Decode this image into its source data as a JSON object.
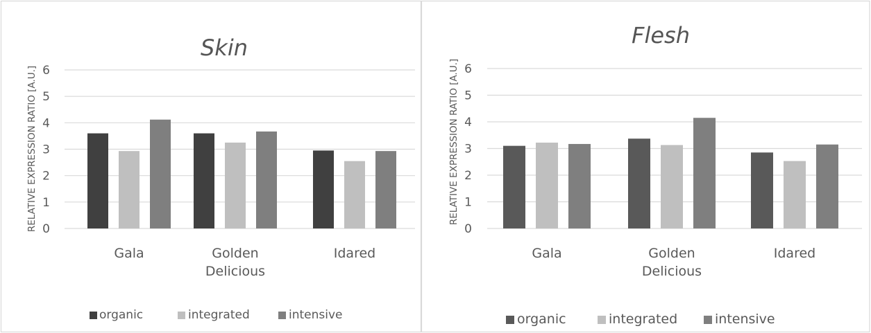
{
  "colors": {
    "organic_left": "#404040",
    "organic_right": "#595959",
    "integrated": "#bfbfbf",
    "intensive": "#7f7f7f",
    "gridline": "#d9d9d9",
    "border": "#d9d9d9"
  },
  "chart_data": [
    {
      "type": "bar",
      "title": "Skin",
      "ylabel": "RELATIVE EXPRESSION RATIO  [A.U.]",
      "xlabel": "",
      "ylim": [
        0,
        6
      ],
      "yticks": [
        "0",
        "1",
        "2",
        "3",
        "4",
        "5",
        "6"
      ],
      "grid": true,
      "legend_position": "bottom",
      "categories": [
        "Gala",
        "Golden Delicious",
        "Idared"
      ],
      "category_lines": [
        [
          "Gala"
        ],
        [
          "Golden",
          "Delicious"
        ],
        [
          "Idared"
        ]
      ],
      "series": [
        {
          "name": "organic",
          "values": [
            3.6,
            3.6,
            2.95
          ]
        },
        {
          "name": "integrated",
          "values": [
            2.93,
            3.25,
            2.55
          ]
        },
        {
          "name": "intensive",
          "values": [
            4.12,
            3.67,
            2.93
          ]
        }
      ]
    },
    {
      "type": "bar",
      "title": "Flesh",
      "ylabel": "RELATIVE EXPRESSION RATIO  [A.U.]",
      "xlabel": "",
      "ylim": [
        0,
        6
      ],
      "yticks": [
        "0",
        "1",
        "2",
        "3",
        "4",
        "5",
        "6"
      ],
      "grid": true,
      "legend_position": "bottom",
      "categories": [
        "Gala",
        "Golden Delicious",
        "Idared"
      ],
      "category_lines": [
        [
          "Gala"
        ],
        [
          "Golden",
          "Delicious"
        ],
        [
          "Idared"
        ]
      ],
      "series": [
        {
          "name": "organic",
          "values": [
            3.1,
            3.37,
            2.85
          ]
        },
        {
          "name": "integrated",
          "values": [
            3.22,
            3.13,
            2.53
          ]
        },
        {
          "name": "intensive",
          "values": [
            3.17,
            4.15,
            3.15
          ]
        }
      ]
    }
  ]
}
